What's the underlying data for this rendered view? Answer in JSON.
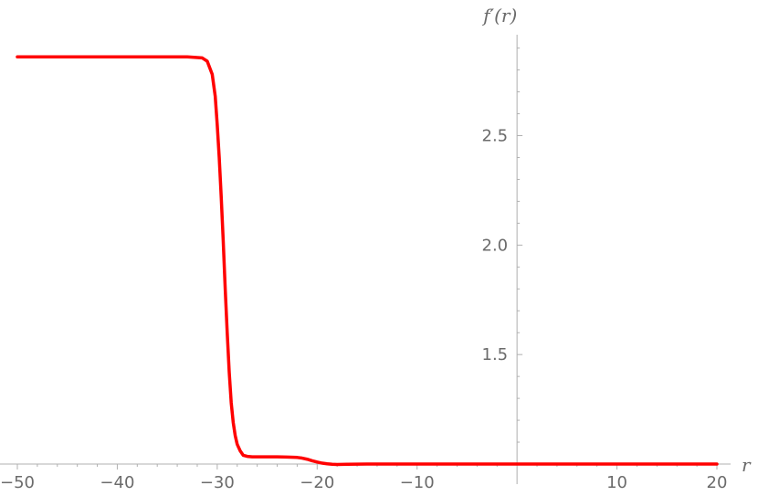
{
  "chart_data": {
    "type": "line",
    "title": "",
    "xlabel": "r",
    "ylabel": "f′(r)",
    "xlim": [
      -51,
      21
    ],
    "ylim": [
      1.0,
      2.95
    ],
    "x_axis_at_y": 1.0,
    "y_axis_at_x": 0,
    "x_ticks": [
      -50,
      -40,
      -30,
      -20,
      -10,
      10,
      20
    ],
    "x_tick_labels": [
      "−50",
      "−40",
      "−30",
      "−20",
      "−10",
      "10",
      "20"
    ],
    "y_ticks": [
      1.5,
      2.0,
      2.5
    ],
    "y_tick_labels": [
      "1.5",
      "2.0",
      "2.5"
    ],
    "grid": false,
    "legend": "none",
    "series": [
      {
        "color": "#ff0000",
        "x": [
          -50,
          -40,
          -33,
          -31.5,
          -31,
          -30.5,
          -30.2,
          -30,
          -29.8,
          -29.6,
          -29.4,
          -29.2,
          -29,
          -28.8,
          -28.6,
          -28.4,
          -28.2,
          -28,
          -27.7,
          -27.4,
          -27,
          -26.5,
          -26,
          -25,
          -24,
          -23,
          -22,
          -21.5,
          -21,
          -20.5,
          -20,
          -19.5,
          -19,
          -18.5,
          -18,
          -17,
          -15,
          -10,
          0,
          10,
          20
        ],
        "y": [
          2.86,
          2.86,
          2.86,
          2.855,
          2.84,
          2.78,
          2.68,
          2.55,
          2.4,
          2.22,
          2.02,
          1.8,
          1.6,
          1.42,
          1.28,
          1.19,
          1.13,
          1.09,
          1.06,
          1.04,
          1.035,
          1.033,
          1.033,
          1.033,
          1.033,
          1.032,
          1.03,
          1.027,
          1.022,
          1.015,
          1.009,
          1.004,
          1.001,
          0.999,
          0.998,
          0.999,
          1.0,
          1.0,
          1.0,
          1.0,
          1.0
        ]
      }
    ]
  }
}
